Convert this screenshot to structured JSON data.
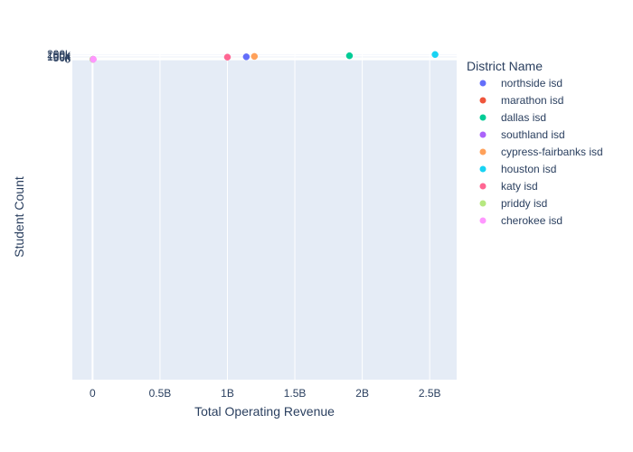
{
  "chart_data": {
    "type": "scatter",
    "xlabel": "Total Operating Revenue",
    "ylabel": "Student Count",
    "xlim": [
      -150000000,
      2700000000
    ],
    "ylim": [
      -13000000,
      205000
    ],
    "x_ticks": [
      {
        "value": 0,
        "label": "0"
      },
      {
        "value": 500000000,
        "label": "0.5B"
      },
      {
        "value": 1000000000,
        "label": "1B"
      },
      {
        "value": 1500000000,
        "label": "1.5B"
      },
      {
        "value": 2000000000,
        "label": "2B"
      },
      {
        "value": 2500000000,
        "label": "2.5B"
      }
    ],
    "y_ticks": [
      {
        "value": 0,
        "label": "0"
      },
      {
        "value": 50000,
        "label": "50k"
      },
      {
        "value": 100000,
        "label": "100k"
      },
      {
        "value": 150000,
        "label": "150k"
      },
      {
        "value": 200000,
        "label": "200k"
      }
    ],
    "grid": true,
    "legend": {
      "title": "District Name",
      "position": "right"
    },
    "series": [
      {
        "name": "northside isd",
        "color": "#636efa",
        "points": [
          [
            1140000000,
            101500
          ]
        ]
      },
      {
        "name": "marathon isd",
        "color": "#EF553B",
        "points": [
          [
            4000000,
            60
          ]
        ]
      },
      {
        "name": "dallas isd",
        "color": "#00cc96",
        "points": [
          [
            1905000000,
            143500
          ]
        ]
      },
      {
        "name": "southland isd",
        "color": "#ab63fa",
        "points": [
          [
            3000000,
            200
          ]
        ]
      },
      {
        "name": "cypress-fairbanks isd",
        "color": "#FFA15A",
        "points": [
          [
            1200000000,
            117000
          ]
        ]
      },
      {
        "name": "houston isd",
        "color": "#19d3f3",
        "points": [
          [
            2540000000,
            194000
          ]
        ]
      },
      {
        "name": "katy isd",
        "color": "#FF6692",
        "points": [
          [
            1000000000,
            88000
          ]
        ]
      },
      {
        "name": "priddy isd",
        "color": "#B6E880",
        "points": [
          [
            2000000,
            80
          ]
        ]
      },
      {
        "name": "cherokee isd",
        "color": "#FF97FF",
        "points": [
          [
            5000000,
            120
          ]
        ]
      }
    ]
  }
}
